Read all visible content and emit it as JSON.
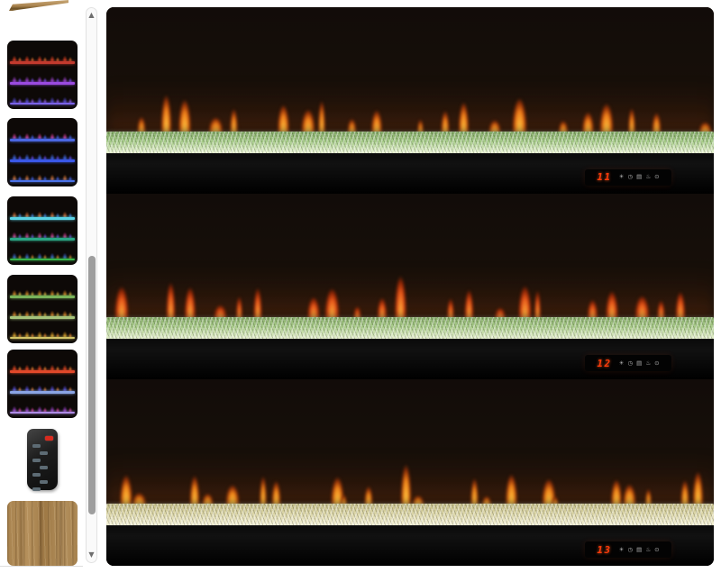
{
  "gallery": {
    "scrollbar": {
      "up_glyph": "▲",
      "down_glyph": "▼"
    },
    "partial_thumbnail": {
      "name": "mantel-wood-edge"
    },
    "thumbnails": [
      {
        "name": "flames-red-purple-blue",
        "type": "fireplace",
        "rows": [
          {
            "f1": "#ff4a26",
            "f2": "#ff8a38",
            "line": "#c23a2e"
          },
          {
            "f1": "#b04ae8",
            "f2": "#7e56ff",
            "line": "#9a4ae0"
          },
          {
            "f1": "#5e55f0",
            "f2": "#a868ff",
            "line": "#7a62e8"
          }
        ]
      },
      {
        "name": "flames-pink-blue-blue",
        "type": "fireplace",
        "rows": [
          {
            "f1": "#ff4ab2",
            "f2": "#4a6aff",
            "line": "#4a66e0"
          },
          {
            "f1": "#4a78ff",
            "f2": "#7a50ff",
            "line": "#3a58e8"
          },
          {
            "f1": "#ff8a38",
            "f2": "#4a6aff",
            "line": "#4a72e8"
          }
        ]
      },
      {
        "name": "flames-multicolor-cyan-teal-green",
        "type": "fireplace",
        "rows": [
          {
            "f1": "#ff7a38",
            "f2": "#4a8aff",
            "line": "#5ad2e4"
          },
          {
            "f1": "#ff4ab2",
            "f2": "#8a4aff",
            "line": "#2aa584"
          },
          {
            "f1": "#4a78ff",
            "f2": "#ff8a38",
            "line": "#38b44a"
          }
        ]
      },
      {
        "name": "flames-orange-green-crystals",
        "type": "fireplace",
        "rows": [
          {
            "f1": "#ff9a28",
            "f2": "#ffc848",
            "line": "#79b45a"
          },
          {
            "f1": "#ff8e22",
            "f2": "#ffc040",
            "line": "#a6c47c"
          },
          {
            "f1": "#ffb428",
            "f2": "#ff8828",
            "line": "#d2c468"
          }
        ]
      },
      {
        "name": "flames-red-blue-purple",
        "type": "fireplace",
        "rows": [
          {
            "f1": "#ff5226",
            "f2": "#ff9638",
            "line": "#e0482a"
          },
          {
            "f1": "#6456ff",
            "f2": "#ff8a38",
            "line": "#8aa4e4"
          },
          {
            "f1": "#b04ae8",
            "f2": "#ff4ab2",
            "line": "#ad8ae4"
          }
        ]
      },
      {
        "name": "remote-control",
        "type": "remote",
        "power_button_color": "#d92a1e",
        "body_color": "#1c1c1c",
        "key_color": "#5d6b74"
      },
      {
        "name": "wood-grain-swatch",
        "type": "wood",
        "base_color": "#ab8755"
      }
    ]
  },
  "main_image": {
    "name": "fireplace-orange-flames-three-views",
    "display_icons": [
      {
        "name": "brightness-icon",
        "glyph": "☀"
      },
      {
        "name": "timer-icon",
        "glyph": "◷"
      },
      {
        "name": "heater-icon",
        "glyph": "▤"
      },
      {
        "name": "flame-icon",
        "glyph": "♨"
      },
      {
        "name": "power-icon",
        "glyph": "⊙"
      }
    ],
    "panels": [
      {
        "name": "view-green-crystals-1",
        "display_value": "11",
        "digit_color": "#ff3b0a",
        "crystal_top": "#7fa662",
        "crystal_mid": "#a2c983",
        "crystal_bottom": "#e6f2cf",
        "flame_core": "#ffd24a",
        "flame_mid": "#f07f1a",
        "flame_deep": "#933107"
      },
      {
        "name": "view-green-crystals-2",
        "display_value": "12",
        "digit_color": "#ff3b0a",
        "crystal_top": "#84aa66",
        "crystal_mid": "#a6c985",
        "crystal_bottom": "#e2eec9",
        "flame_core": "#ffc044",
        "flame_mid": "#e8581a",
        "flame_deep": "#8f2505"
      },
      {
        "name": "view-champagne-crystals-3",
        "display_value": "13",
        "digit_color": "#ff3b0a",
        "crystal_top": "#c2bb86",
        "crystal_mid": "#d9d3a2",
        "crystal_bottom": "#f2efd2",
        "flame_core": "#ffd24a",
        "flame_mid": "#f0861a",
        "flame_deep": "#933107"
      }
    ]
  }
}
